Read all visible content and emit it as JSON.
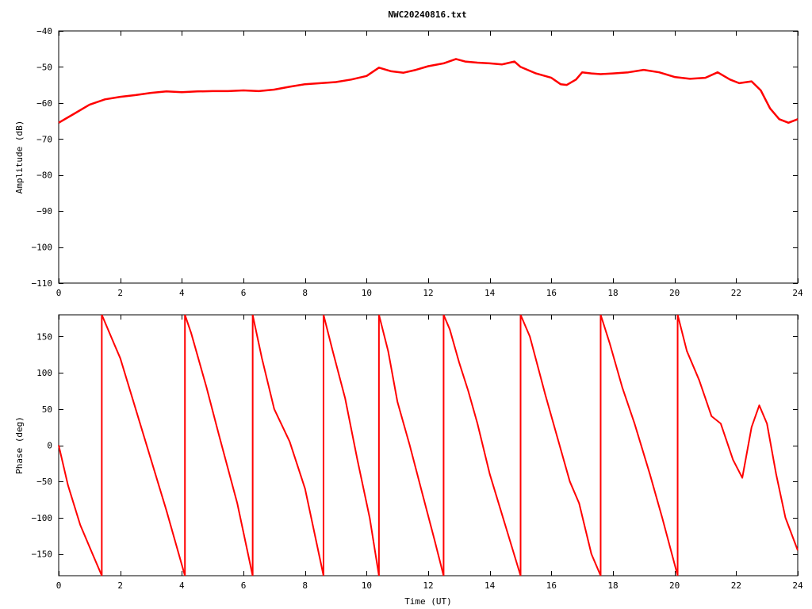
{
  "title": "NWC20240816.txt",
  "colors": {
    "series": "#ff0000",
    "axis": "#000000",
    "background": "#ffffff"
  },
  "chart_data": [
    {
      "type": "line",
      "name": "amplitude-panel",
      "xlabel": "",
      "ylabel": "Amplitude (dB)",
      "xlim": [
        0,
        24
      ],
      "ylim": [
        -110,
        -40
      ],
      "xticks": [
        0,
        2,
        4,
        6,
        8,
        10,
        12,
        14,
        16,
        18,
        20,
        22,
        24
      ],
      "yticks": [
        -110,
        -100,
        -90,
        -80,
        -70,
        -60,
        -50,
        -40
      ],
      "grid": false,
      "legend": "none",
      "x": [
        0,
        0.5,
        1,
        1.5,
        2,
        2.5,
        3,
        3.5,
        4,
        4.5,
        5,
        5.5,
        6,
        6.5,
        7,
        7.5,
        8,
        8.5,
        9,
        9.5,
        10,
        10.4,
        10.8,
        11.2,
        11.6,
        12,
        12.5,
        12.9,
        13.2,
        13.6,
        14,
        14.4,
        14.8,
        15,
        15.5,
        16,
        16.3,
        16.5,
        16.8,
        17,
        17.3,
        17.6,
        18,
        18.5,
        19,
        19.5,
        20,
        20.5,
        21,
        21.4,
        21.8,
        22.1,
        22.5,
        22.8,
        23.1,
        23.4,
        23.7,
        24
      ],
      "y": [
        -65.5,
        -63,
        -60.5,
        -59,
        -58.3,
        -57.8,
        -57.2,
        -56.8,
        -57,
        -56.8,
        -56.7,
        -56.7,
        -56.5,
        -56.7,
        -56.3,
        -55.5,
        -54.8,
        -54.5,
        -54.2,
        -53.5,
        -52.5,
        -50.2,
        -51.2,
        -51.6,
        -50.8,
        -49.8,
        -49,
        -47.8,
        -48.5,
        -48.8,
        -49,
        -49.3,
        -48.5,
        -50,
        -51.8,
        -53,
        -54.8,
        -55,
        -53.5,
        -51.5,
        -51.8,
        -52,
        -51.8,
        -51.5,
        -50.8,
        -51.5,
        -52.8,
        -53.3,
        -53,
        -51.5,
        -53.5,
        -54.5,
        -54,
        -56.5,
        -61.5,
        -64.5,
        -65.5,
        -64.5
      ]
    },
    {
      "type": "line",
      "name": "phase-panel",
      "xlabel": "Time (UT)",
      "ylabel": "Phase (deg)",
      "xlim": [
        0,
        24
      ],
      "ylim": [
        -180,
        180
      ],
      "xticks": [
        0,
        2,
        4,
        6,
        8,
        10,
        12,
        14,
        16,
        18,
        20,
        22,
        24
      ],
      "yticks": [
        -150,
        -100,
        -50,
        0,
        50,
        100,
        150
      ],
      "grid": false,
      "legend": "none",
      "segments": [
        {
          "x": [
            0,
            0.3,
            0.7,
            1.1,
            1.4
          ],
          "y": [
            0,
            -55,
            -110,
            -150,
            -180
          ]
        },
        {
          "x": [
            1.4,
            1.8,
            2,
            2.5,
            3,
            3.5,
            4.1
          ],
          "y": [
            180,
            140,
            120,
            50,
            -20,
            -90,
            -180
          ]
        },
        {
          "x": [
            4.1,
            4.3,
            4.8,
            5.2,
            5.8,
            6.3
          ],
          "y": [
            180,
            155,
            80,
            15,
            -80,
            -180
          ]
        },
        {
          "x": [
            6.3,
            6.6,
            7,
            7.5,
            8,
            8.6
          ],
          "y": [
            180,
            120,
            50,
            5,
            -60,
            -180
          ]
        },
        {
          "x": [
            8.6,
            8.9,
            9.3,
            9.7,
            10.1,
            10.4
          ],
          "y": [
            180,
            130,
            65,
            -20,
            -100,
            -180
          ]
        },
        {
          "x": [
            10.4,
            10.7,
            11,
            11.4,
            11.8,
            12.2,
            12.5
          ],
          "y": [
            180,
            130,
            60,
            0,
            -65,
            -130,
            -180
          ]
        },
        {
          "x": [
            12.5,
            12.7,
            13,
            13.3,
            13.6,
            14,
            14.5,
            15
          ],
          "y": [
            180,
            160,
            115,
            75,
            30,
            -40,
            -110,
            -180
          ]
        },
        {
          "x": [
            15,
            15.3,
            15.8,
            16.2,
            16.6,
            16.9,
            17.3,
            17.6
          ],
          "y": [
            180,
            150,
            70,
            10,
            -50,
            -80,
            -150,
            -180
          ]
        },
        {
          "x": [
            17.6,
            17.9,
            18.3,
            18.7,
            19.2,
            19.6,
            20.1
          ],
          "y": [
            180,
            140,
            80,
            30,
            -40,
            -100,
            -180
          ]
        },
        {
          "x": [
            20.1,
            20.4,
            20.8,
            21.2,
            21.5,
            21.9,
            22.2,
            22.5,
            22.75,
            23,
            23.3,
            23.6,
            24
          ],
          "y": [
            180,
            130,
            90,
            40,
            30,
            -20,
            -45,
            25,
            55,
            30,
            -40,
            -100,
            -145
          ]
        }
      ]
    }
  ]
}
